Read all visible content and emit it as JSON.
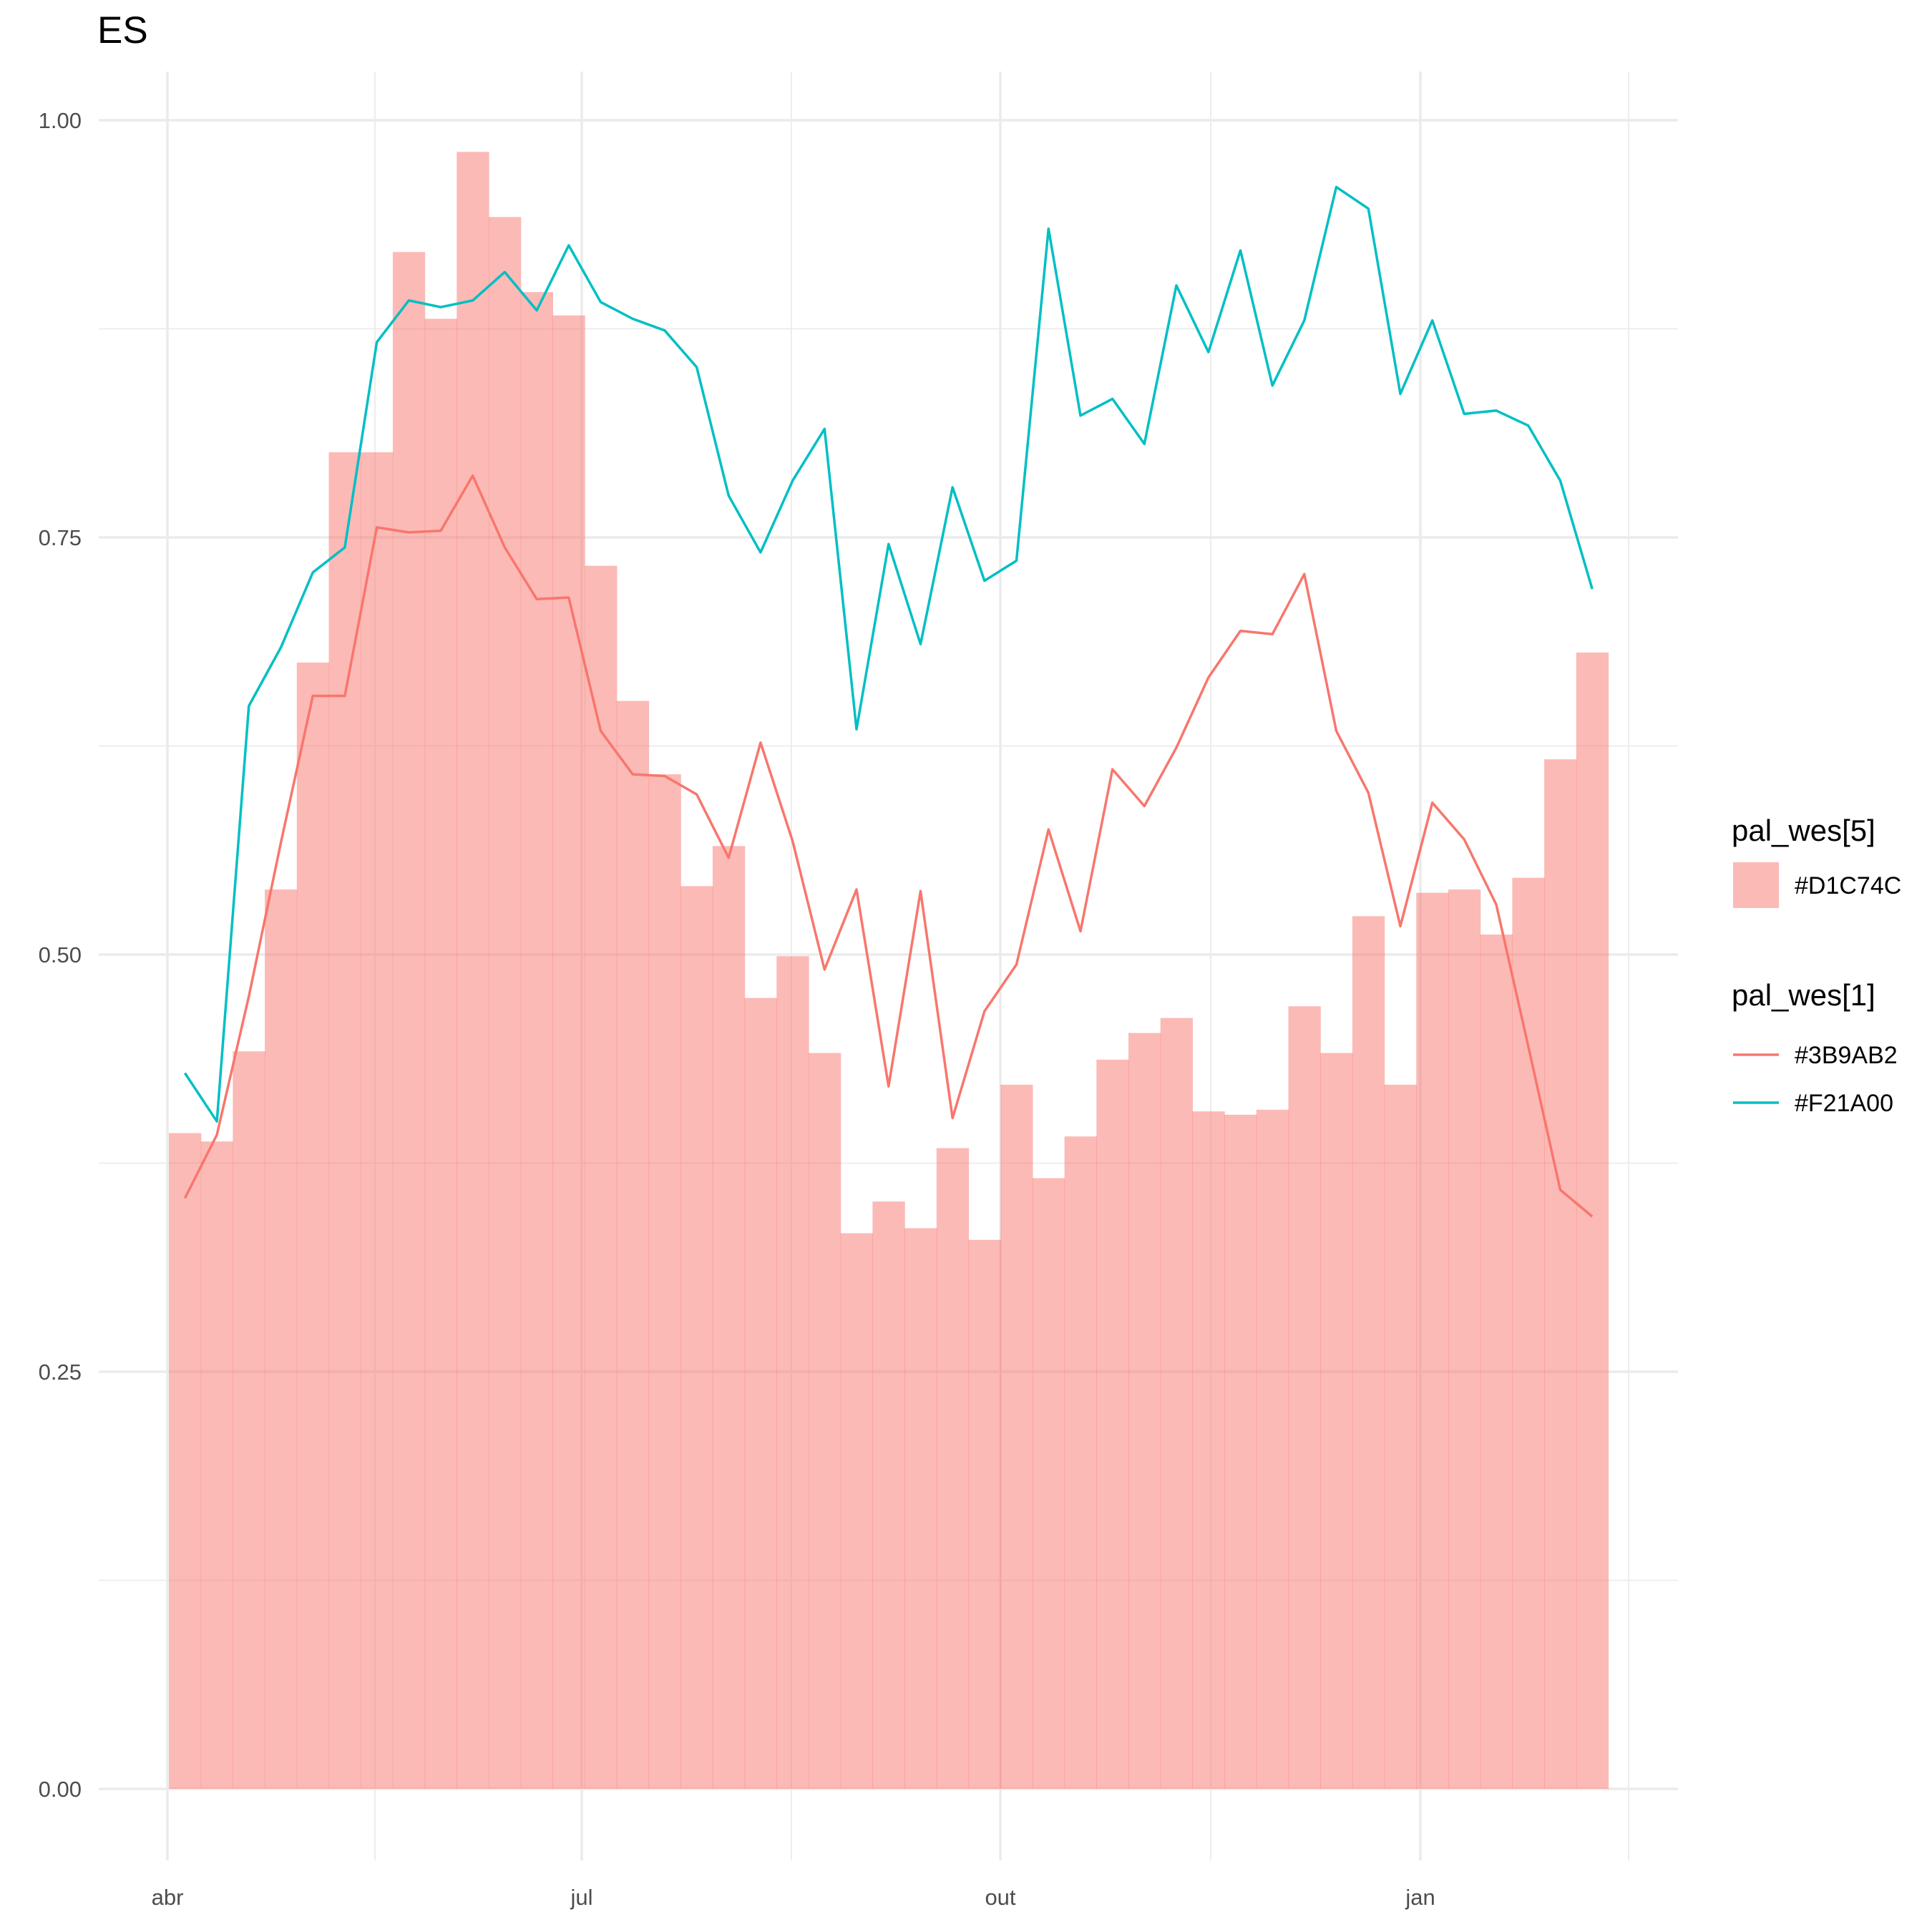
{
  "chart_data": {
    "type": "bar",
    "title": "ES",
    "xlabel": "",
    "ylabel": "",
    "ylim": [
      -0.04,
      1.04
    ],
    "y_ticks": [
      0.0,
      0.25,
      0.5,
      0.75,
      1.0
    ],
    "y_tick_labels": [
      "0.00",
      "0.25",
      "0.50",
      "0.75",
      "1.00"
    ],
    "x_ticks": [
      "abr",
      "jul",
      "out",
      "jan"
    ],
    "grid": true,
    "legend_position": "right",
    "bars": {
      "legend_title": "pal_wes[5]",
      "name": "#D1C74C",
      "color": "#F8766D",
      "values": [
        0.393,
        0.388,
        0.442,
        0.539,
        0.675,
        0.801,
        0.801,
        0.921,
        0.881,
        0.981,
        0.942,
        0.897,
        0.883,
        0.733,
        0.652,
        0.608,
        0.541,
        0.565,
        0.474,
        0.499,
        0.441,
        0.333,
        0.352,
        0.336,
        0.384,
        0.329,
        0.422,
        0.366,
        0.391,
        0.437,
        0.453,
        0.462,
        0.406,
        0.404,
        0.407,
        0.469,
        0.441,
        0.523,
        0.422,
        0.537,
        0.539,
        0.512,
        0.546,
        0.617,
        0.681
      ]
    },
    "series_legend_title": "pal_wes[1]",
    "series": [
      {
        "name": "#3B9AB2",
        "color": "#F8766D",
        "values": [
          0.354,
          0.392,
          0.475,
          0.567,
          0.655,
          0.655,
          0.756,
          0.753,
          0.754,
          0.787,
          0.744,
          0.713,
          0.714,
          0.634,
          0.608,
          0.607,
          0.596,
          0.558,
          0.627,
          0.568,
          0.491,
          0.539,
          0.421,
          0.538,
          0.402,
          0.466,
          0.494,
          0.575,
          0.514,
          0.611,
          0.589,
          0.624,
          0.666,
          0.694,
          0.692,
          0.728,
          0.634,
          0.597,
          0.517,
          0.591,
          0.569,
          0.53,
          0.445,
          0.359,
          0.343
        ]
      },
      {
        "name": "#F21A00",
        "color": "#00BFC4",
        "values": [
          0.429,
          0.4,
          0.649,
          0.684,
          0.729,
          0.744,
          0.867,
          0.892,
          0.888,
          0.892,
          0.909,
          0.886,
          0.925,
          0.891,
          0.881,
          0.874,
          0.852,
          0.775,
          0.741,
          0.784,
          0.815,
          0.635,
          0.746,
          0.686,
          0.78,
          0.724,
          0.736,
          0.935,
          0.823,
          0.833,
          0.806,
          0.901,
          0.861,
          0.922,
          0.841,
          0.88,
          0.96,
          0.947,
          0.836,
          0.88,
          0.824,
          0.826,
          0.817,
          0.784,
          0.719
        ]
      }
    ]
  }
}
